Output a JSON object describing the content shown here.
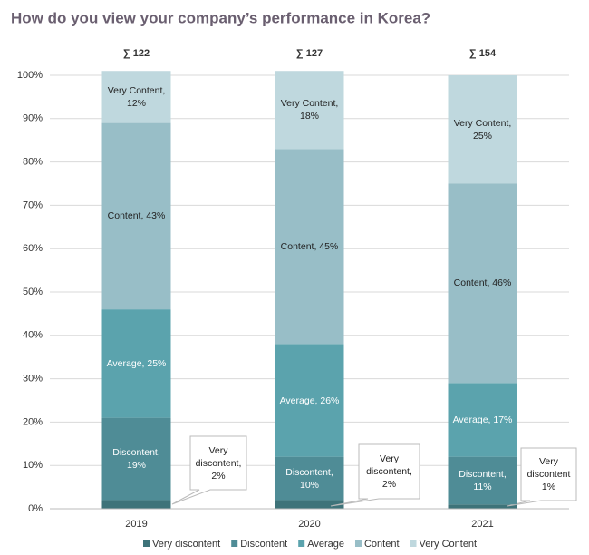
{
  "chart_data": {
    "type": "stacked_bar",
    "title": "How do you view your company’s performance in Korea?",
    "categories": [
      "2019",
      "2020",
      "2021"
    ],
    "annotations": [
      "∑ 122",
      "∑ 127",
      "∑ 154"
    ],
    "series": [
      {
        "name": "Very discontent",
        "color": "#3e7379",
        "values": [
          2,
          2,
          1
        ],
        "value_labels": [
          "Very discontent, 2%",
          "Very discontent, 2%",
          "Very discontent 1%"
        ]
      },
      {
        "name": "Discontent",
        "color": "#4f8c96",
        "values": [
          19,
          10,
          11
        ],
        "value_labels": [
          "Discontent, 19%",
          "Discontent, 10%",
          "Discontent, 11%"
        ]
      },
      {
        "name": "Average",
        "color": "#5ba3ad",
        "values": [
          25,
          26,
          17
        ],
        "value_labels": [
          "Average, 25%",
          "Average, 26%",
          "Average, 17%"
        ]
      },
      {
        "name": "Content",
        "color": "#98bec7",
        "values": [
          43,
          45,
          46
        ],
        "value_labels": [
          "Content, 43%",
          "Content, 45%",
          "Content, 46%"
        ]
      },
      {
        "name": "Very Content",
        "color": "#bfd8de",
        "values": [
          12,
          18,
          25
        ],
        "value_labels": [
          "Very Content, 12%",
          "Very Content, 18%",
          "Very Content, 25%"
        ]
      }
    ],
    "ylim": [
      0,
      100
    ],
    "yticks": [
      {
        "value": 0,
        "label": "0%"
      },
      {
        "value": 10,
        "label": "10%"
      },
      {
        "value": 20,
        "label": "20%"
      },
      {
        "value": 30,
        "label": "30%"
      },
      {
        "value": 40,
        "label": "40%"
      },
      {
        "value": 50,
        "label": "50%"
      },
      {
        "value": 60,
        "label": "60%"
      },
      {
        "value": 70,
        "label": "70%"
      },
      {
        "value": 80,
        "label": "80%"
      },
      {
        "value": 90,
        "label": "90%"
      },
      {
        "value": 100,
        "label": "100%"
      }
    ],
    "grid": true,
    "legend": "bottom"
  }
}
